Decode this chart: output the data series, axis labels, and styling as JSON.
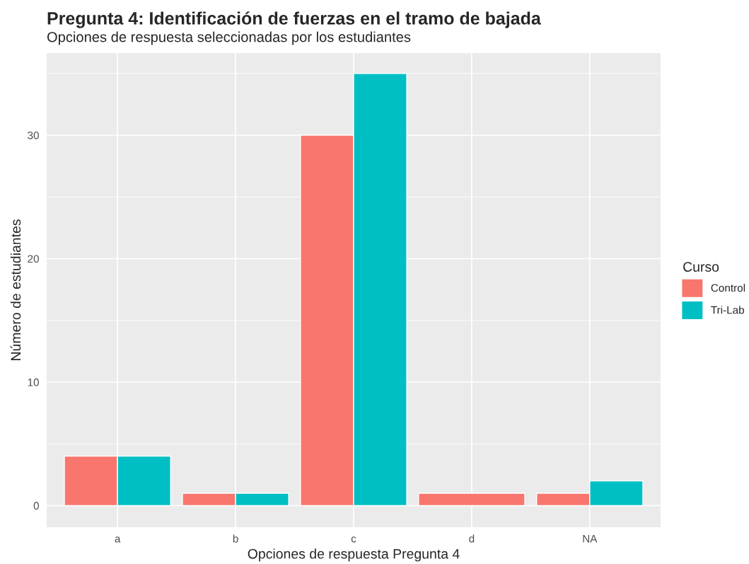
{
  "chart_data": {
    "type": "bar",
    "title": "Pregunta 4: Identificación de fuerzas en el tramo de bajada",
    "subtitle": "Opciones de respuesta seleccionadas por los estudiantes",
    "xlabel": "Opciones de respuesta Pregunta 4",
    "ylabel": "Número de estudiantes",
    "legend_title": "Curso",
    "categories": [
      "a",
      "b",
      "c",
      "d",
      "NA"
    ],
    "series": [
      {
        "name": "Control",
        "color": "#f8766d",
        "values": [
          4,
          1,
          30,
          1,
          1
        ]
      },
      {
        "name": "Tri-Lab",
        "color": "#00bfc4",
        "values": [
          4,
          1,
          35,
          null,
          2
        ]
      }
    ],
    "ylim": [
      -1.75,
      36.65
    ],
    "yticks": [
      0,
      {
        "value": 5,
        "label": null
      },
      10,
      {
        "value": 15,
        "label": null
      },
      20,
      {
        "value": 25,
        "label": null
      },
      30,
      {
        "value": 35,
        "label": null
      }
    ],
    "grid": true,
    "legend": "right"
  }
}
